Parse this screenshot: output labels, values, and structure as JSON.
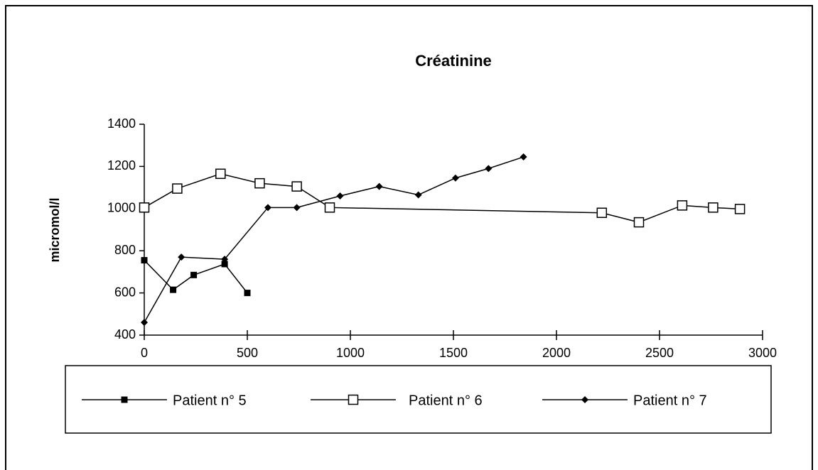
{
  "chart_data": {
    "type": "line",
    "title": "Créatinine",
    "y_label": "micromol/l",
    "xlim": [
      0,
      3000
    ],
    "xticks": [
      0,
      500,
      1000,
      1500,
      2000,
      2500,
      3000
    ],
    "ylim": [
      400,
      1400
    ],
    "yticks": [
      400,
      600,
      800,
      1000,
      1200,
      1400
    ],
    "series": [
      {
        "name": "Patient n° 5",
        "color": "#000000",
        "marker": "square",
        "x": [
          0,
          140,
          240,
          390,
          500
        ],
        "values": [
          755,
          615,
          685,
          737,
          600
        ]
      },
      {
        "name": "Patient n° 6",
        "color": "#000000",
        "marker": "open-square",
        "x": [
          0,
          160,
          370,
          560,
          740,
          900,
          2220,
          2400,
          2610,
          2760,
          2890
        ],
        "values": [
          1005,
          1095,
          1165,
          1120,
          1105,
          1005,
          980,
          935,
          1015,
          1005,
          998
        ]
      },
      {
        "name": "Patient n° 7",
        "color": "#000000",
        "marker": "diamond",
        "x": [
          0,
          180,
          390,
          600,
          740,
          950,
          1140,
          1330,
          1510,
          1670,
          1840
        ],
        "values": [
          460,
          770,
          760,
          1005,
          1005,
          1060,
          1105,
          1065,
          1145,
          1190,
          1245
        ]
      }
    ]
  }
}
